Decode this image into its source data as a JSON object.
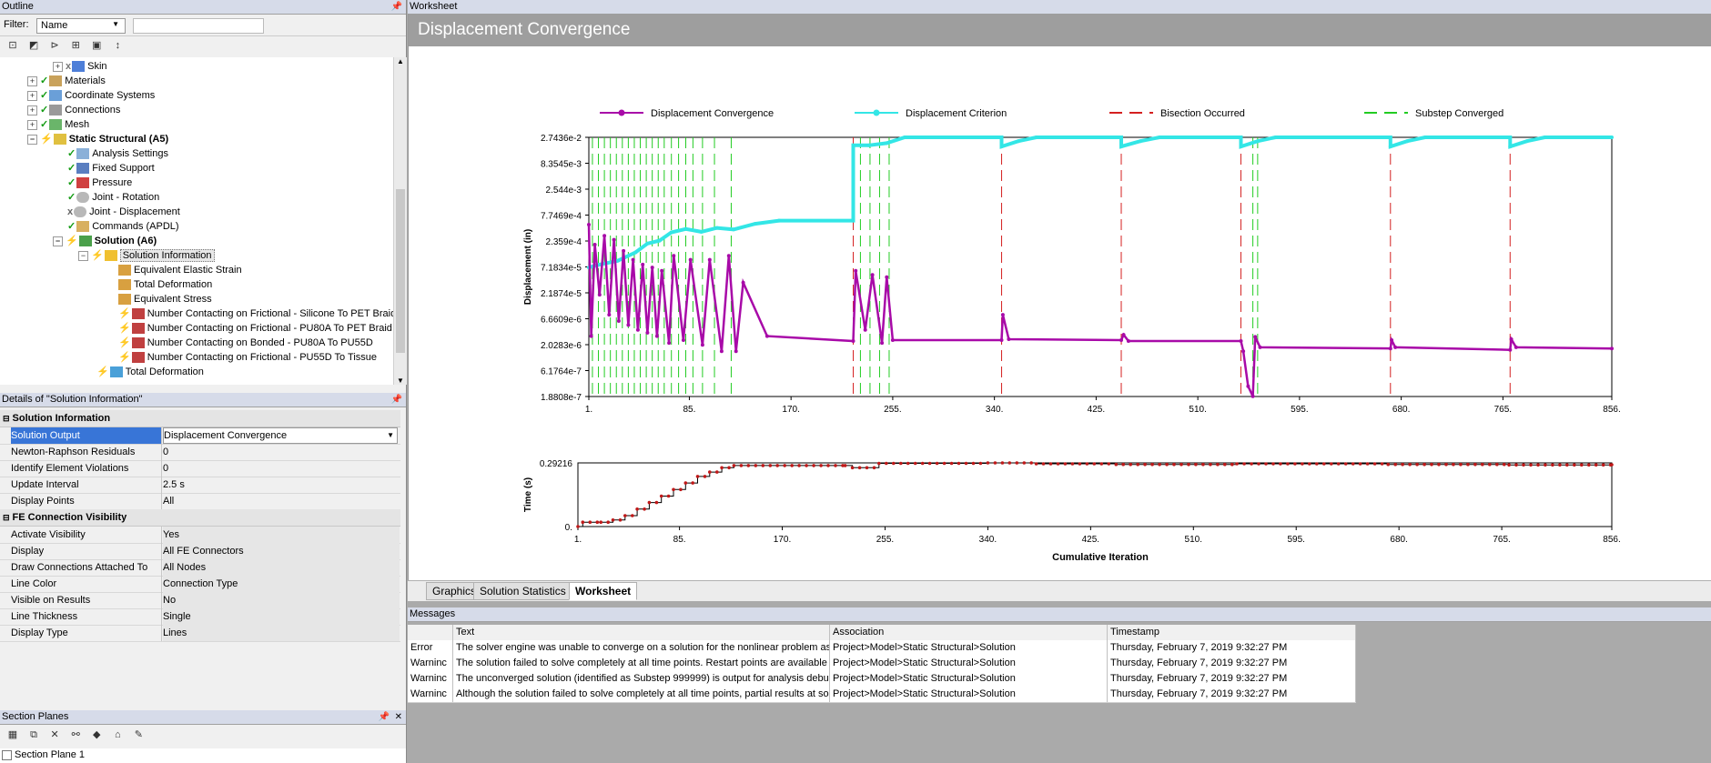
{
  "outline": {
    "title": "Outline",
    "filter_label": "Filter:",
    "filter_value": "Name",
    "filter_text": "",
    "tree": [
      {
        "label": "Skin",
        "bold": false
      },
      {
        "label": "Materials",
        "bold": false
      },
      {
        "label": "Coordinate Systems",
        "bold": false
      },
      {
        "label": "Connections",
        "bold": false
      },
      {
        "label": "Mesh",
        "bold": false
      },
      {
        "label": "Static Structural (A5)",
        "bold": true
      },
      {
        "label": "Analysis Settings",
        "bold": false
      },
      {
        "label": "Fixed Support",
        "bold": false
      },
      {
        "label": "Pressure",
        "bold": false
      },
      {
        "label": "Joint - Rotation",
        "bold": false
      },
      {
        "label": "Joint - Displacement",
        "bold": false
      },
      {
        "label": "Commands (APDL)",
        "bold": false
      },
      {
        "label": "Solution (A6)",
        "bold": true
      },
      {
        "label": "Solution Information",
        "bold": false
      },
      {
        "label": "Equivalent Elastic Strain",
        "bold": false
      },
      {
        "label": "Total Deformation",
        "bold": false
      },
      {
        "label": "Equivalent Stress",
        "bold": false
      },
      {
        "label": "Number Contacting on Frictional - Silicone To PET Braid",
        "bold": false
      },
      {
        "label": "Number Contacting on Frictional - PU80A To PET Braid",
        "bold": false
      },
      {
        "label": "Number Contacting on Bonded - PU80A To PU55D",
        "bold": false
      },
      {
        "label": "Number Contacting on Frictional - PU55D To Tissue",
        "bold": false
      },
      {
        "label": "Total Deformation",
        "bold": false
      }
    ]
  },
  "details": {
    "title": "Details of \"Solution Information\"",
    "group1": "Solution Information",
    "group2": "FE Connection Visibility",
    "rows1": [
      {
        "k": "Solution Output",
        "v": "Displacement Convergence"
      },
      {
        "k": "Newton-Raphson Residuals",
        "v": "0"
      },
      {
        "k": "Identify Element Violations",
        "v": "0"
      },
      {
        "k": "Update Interval",
        "v": "2.5 s"
      },
      {
        "k": "Display Points",
        "v": "All"
      }
    ],
    "rows2": [
      {
        "k": "Activate Visibility",
        "v": "Yes"
      },
      {
        "k": "Display",
        "v": "All FE Connectors"
      },
      {
        "k": "Draw Connections Attached To",
        "v": "All Nodes"
      },
      {
        "k": "Line Color",
        "v": "Connection Type"
      },
      {
        "k": "Visible on Results",
        "v": "No"
      },
      {
        "k": "Line Thickness",
        "v": "Single"
      },
      {
        "k": "Display Type",
        "v": "Lines"
      }
    ]
  },
  "section_planes": {
    "title": "Section Planes",
    "item": "Section Plane 1"
  },
  "worksheet": {
    "header": "Worksheet",
    "title": "Displacement Convergence"
  },
  "tabs": [
    "Graphics",
    "Solution Statistics",
    "Worksheet"
  ],
  "messages": {
    "title": "Messages",
    "headers": [
      "",
      "Text",
      "Association",
      "Timestamp"
    ],
    "rows": [
      [
        "Error",
        "The solver engine was unable to converge on a solution for the nonlinear problem as co",
        "Project>Model>Static Structural>Solution",
        "Thursday, February 7, 2019 9:32:27 PM"
      ],
      [
        "Warninc",
        "The solution failed to solve completely at all time points. Restart points are available to",
        "Project>Model>Static Structural>Solution",
        "Thursday, February 7, 2019 9:32:27 PM"
      ],
      [
        "Warninc",
        "The unconverged solution (identified as Substep 999999) is output for analysis debug p",
        "Project>Model>Static Structural>Solution",
        "Thursday, February 7, 2019 9:32:27 PM"
      ],
      [
        "Warninc",
        "Although the solution failed to solve completely at all time points, partial results at som",
        "Project>Model>Static Structural>Solution",
        "Thursday, February 7, 2019 9:32:27 PM"
      ]
    ]
  },
  "colors": {
    "convergence": "#a80aa8",
    "criterion": "#33e6e6",
    "bisection": "#d42020",
    "substep": "#22cc22",
    "time": "#c01818"
  },
  "chart_data": [
    {
      "type": "line",
      "legend": [
        "Displacement Convergence",
        "Displacement Criterion",
        "Bisection Occurred",
        "Substep Converged"
      ],
      "ylabel": "Displacement (in)",
      "xlabel": "",
      "y_ticks": [
        "2.7436e-2",
        "8.3545e-3",
        "2.544e-3",
        "7.7469e-4",
        "2.359e-4",
        "7.1834e-5",
        "2.1874e-5",
        "6.6609e-6",
        "2.0283e-6",
        "6.1764e-7",
        "1.8808e-7"
      ],
      "x_ticks": [
        "1.",
        "85.",
        "170.",
        "255.",
        "340.",
        "425.",
        "510.",
        "595.",
        "680.",
        "765.",
        "856."
      ],
      "xlim": [
        1,
        856
      ],
      "log_scale_y": true,
      "bisection_x": [
        222,
        346,
        446,
        546,
        671,
        771
      ],
      "substep_x": [
        4,
        9,
        14,
        19,
        24,
        29,
        34,
        39,
        44,
        49,
        54,
        59,
        64,
        70,
        76,
        82,
        88,
        96,
        106,
        120,
        228,
        236,
        244,
        252,
        556,
        560
      ],
      "criterion": [
        [
          1,
          7e-05
        ],
        [
          10,
          8e-05
        ],
        [
          25,
          9.5e-05
        ],
        [
          40,
          0.00014
        ],
        [
          50,
          0.00021
        ],
        [
          60,
          0.00024
        ],
        [
          70,
          0.00035
        ],
        [
          82,
          0.00041
        ],
        [
          95,
          0.00036
        ],
        [
          108,
          0.00043
        ],
        [
          122,
          0.0004
        ],
        [
          140,
          0.00052
        ],
        [
          160,
          0.0006
        ],
        [
          222,
          0.0006
        ],
        [
          222,
          0.019
        ],
        [
          235,
          0.019
        ],
        [
          250,
          0.021
        ],
        [
          265,
          0.0274
        ],
        [
          346,
          0.0274
        ],
        [
          346,
          0.018
        ],
        [
          360,
          0.023
        ],
        [
          375,
          0.0274
        ],
        [
          446,
          0.0274
        ],
        [
          446,
          0.018
        ],
        [
          462,
          0.023
        ],
        [
          478,
          0.0274
        ],
        [
          546,
          0.0274
        ],
        [
          546,
          0.018
        ],
        [
          560,
          0.023
        ],
        [
          575,
          0.0274
        ],
        [
          671,
          0.0274
        ],
        [
          671,
          0.018
        ],
        [
          685,
          0.023
        ],
        [
          700,
          0.0274
        ],
        [
          771,
          0.0274
        ],
        [
          771,
          0.018
        ],
        [
          785,
          0.023
        ],
        [
          800,
          0.0274
        ],
        [
          856,
          0.0274
        ]
      ],
      "convergence": [
        [
          1,
          0.0005
        ],
        [
          3,
          3e-06
        ],
        [
          6,
          0.0002
        ],
        [
          10,
          2e-05
        ],
        [
          14,
          0.0003
        ],
        [
          18,
          8e-06
        ],
        [
          22,
          0.00025
        ],
        [
          26,
          6e-06
        ],
        [
          30,
          0.00015
        ],
        [
          34,
          5e-06
        ],
        [
          38,
          0.0001
        ],
        [
          42,
          4e-06
        ],
        [
          46,
          8e-05
        ],
        [
          50,
          3.5e-06
        ],
        [
          54,
          7e-05
        ],
        [
          58,
          3e-06
        ],
        [
          62,
          6e-05
        ],
        [
          68,
          2.2e-06
        ],
        [
          72,
          0.00012
        ],
        [
          80,
          2.5e-06
        ],
        [
          86,
          0.0001
        ],
        [
          96,
          2e-06
        ],
        [
          102,
          0.0001
        ],
        [
          112,
          1.5e-06
        ],
        [
          118,
          0.00012
        ],
        [
          124,
          1.5e-06
        ],
        [
          130,
          3.5e-05
        ],
        [
          150,
          3e-06
        ],
        [
          222,
          2.4e-06
        ],
        [
          224,
          6e-05
        ],
        [
          232,
          4e-06
        ],
        [
          238,
          5e-05
        ],
        [
          246,
          2.2e-06
        ],
        [
          250,
          4.5e-05
        ],
        [
          255,
          2.5e-06
        ],
        [
          346,
          2.5e-06
        ],
        [
          347,
          8e-06
        ],
        [
          352,
          2.6e-06
        ],
        [
          446,
          2.5e-06
        ],
        [
          448,
          3.2e-06
        ],
        [
          452,
          2.4e-06
        ],
        [
          546,
          2.4e-06
        ],
        [
          548,
          1.5e-06
        ],
        [
          552,
          3e-07
        ],
        [
          556,
          1.9e-07
        ],
        [
          558,
          2.9e-06
        ],
        [
          562,
          1.8e-06
        ],
        [
          671,
          1.7e-06
        ],
        [
          672,
          2.5e-06
        ],
        [
          675,
          1.8e-06
        ],
        [
          771,
          1.6e-06
        ],
        [
          772,
          2.6e-06
        ],
        [
          776,
          1.8e-06
        ],
        [
          856,
          1.7e-06
        ]
      ]
    },
    {
      "type": "line",
      "ylabel": "Time (s)",
      "xlabel": "Cumulative Iteration",
      "y_ticks": [
        "0.29216",
        "0."
      ],
      "x_ticks": [
        "1.",
        "85.",
        "170.",
        "255.",
        "340.",
        "425.",
        "510.",
        "595.",
        "680.",
        "765.",
        "856."
      ],
      "xlim": [
        1,
        856
      ],
      "ylim": [
        0,
        0.29216
      ],
      "time": [
        [
          1,
          0.0
        ],
        [
          5,
          0.02
        ],
        [
          20,
          0.02
        ],
        [
          30,
          0.03
        ],
        [
          40,
          0.05
        ],
        [
          50,
          0.08
        ],
        [
          60,
          0.11
        ],
        [
          70,
          0.14
        ],
        [
          80,
          0.17
        ],
        [
          90,
          0.2
        ],
        [
          100,
          0.23
        ],
        [
          110,
          0.25
        ],
        [
          120,
          0.27
        ],
        [
          130,
          0.28
        ],
        [
          222,
          0.28
        ],
        [
          228,
          0.27
        ],
        [
          240,
          0.27
        ],
        [
          250,
          0.29
        ],
        [
          340,
          0.292
        ],
        [
          380,
          0.288
        ],
        [
          446,
          0.285
        ],
        [
          546,
          0.288
        ],
        [
          671,
          0.285
        ],
        [
          771,
          0.283
        ],
        [
          856,
          0.284
        ]
      ]
    }
  ]
}
